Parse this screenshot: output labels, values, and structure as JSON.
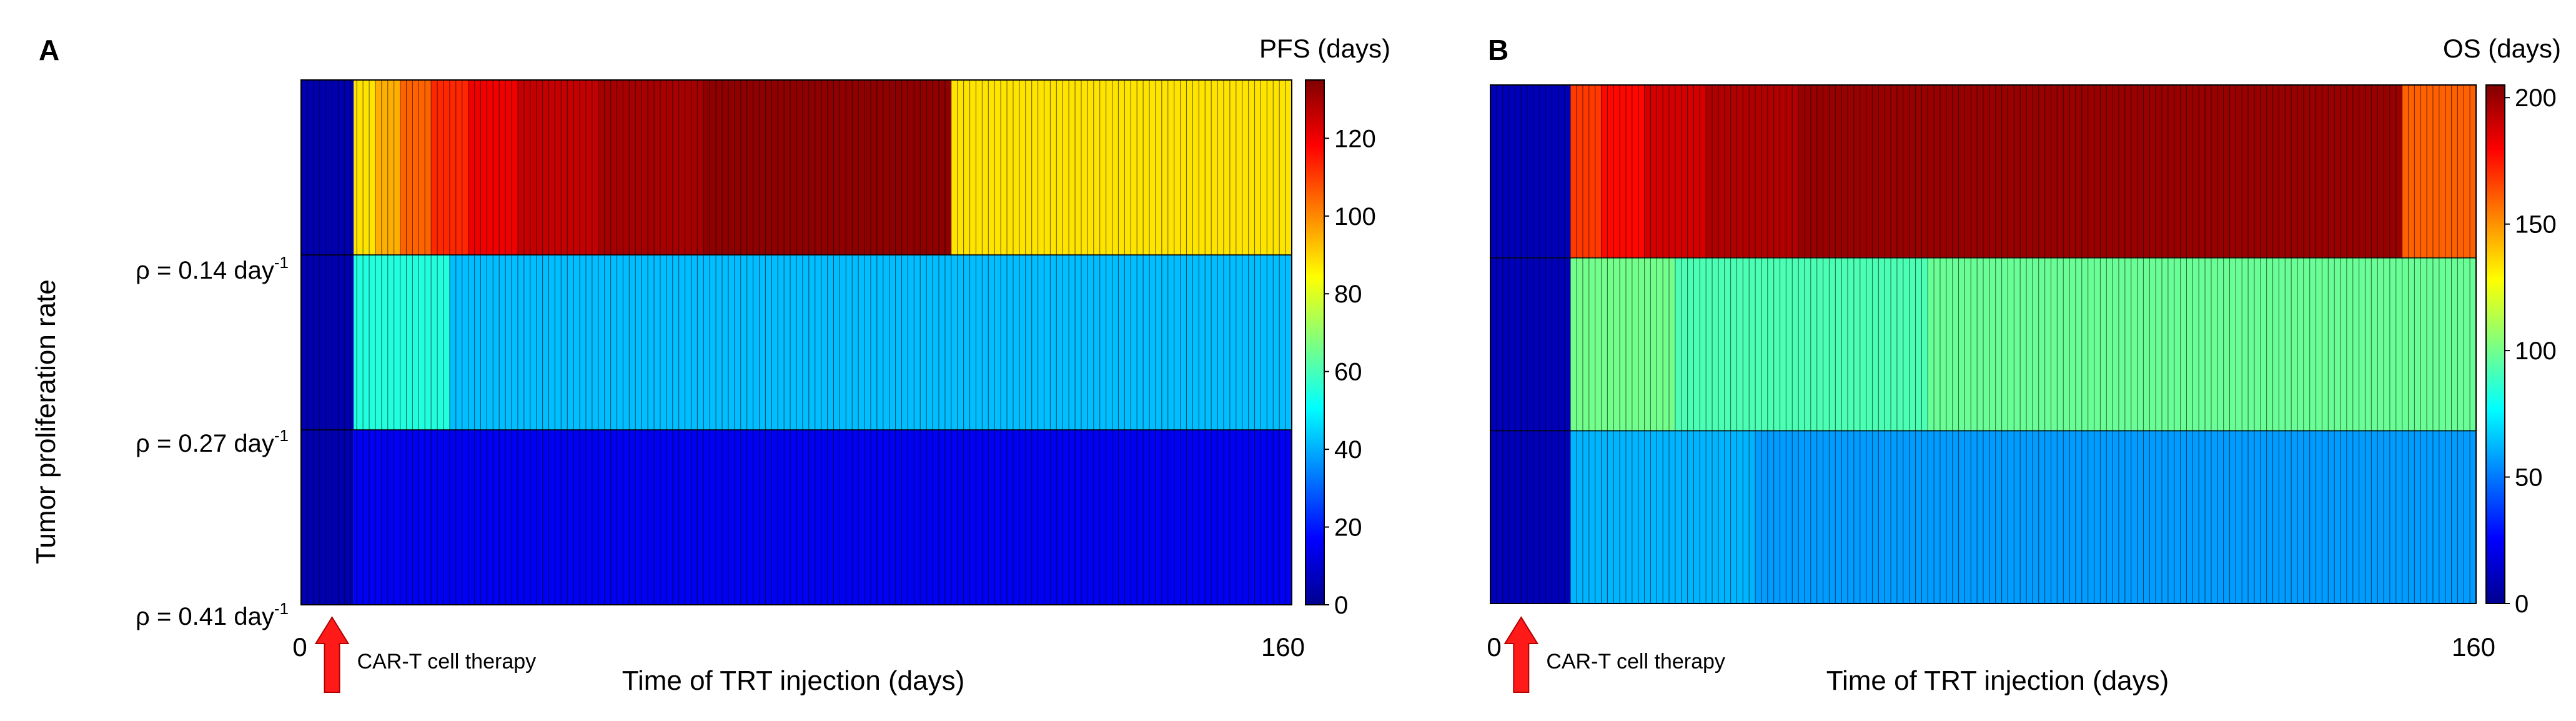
{
  "chart_data": [
    {
      "panel": "A",
      "type": "heatmap",
      "colorbar_title": "PFS (days)",
      "ylabel": "Tumor proliferation rate",
      "xlabel": "Time of TRT injection (days)",
      "x_ticks": [
        "0",
        "160"
      ],
      "xlim": [
        0,
        160
      ],
      "rows": [
        {
          "rho": "ρ = 0.14 day",
          "sup": "-1"
        },
        {
          "rho": "ρ = 0.27 day",
          "sup": "-1"
        },
        {
          "rho": "ρ = 0.41 day",
          "sup": "-1"
        }
      ],
      "colorbar_range": [
        0,
        135
      ],
      "colorbar_ticks": [
        "0",
        "20",
        "40",
        "60",
        "80",
        "100",
        "120"
      ],
      "colorbar_tick_values": [
        0,
        20,
        40,
        60,
        80,
        100,
        120
      ],
      "annotation": "CAR-T cell therapy",
      "annotation_x": 5,
      "segments": [
        [
          {
            "x0": 0,
            "x1": 8.5,
            "value": 5
          },
          {
            "x0": 8.5,
            "x1": 12,
            "value": 88
          },
          {
            "x0": 12,
            "x1": 16,
            "value": 95
          },
          {
            "x0": 16,
            "x1": 21,
            "value": 105
          },
          {
            "x0": 21,
            "x1": 27,
            "value": 113
          },
          {
            "x0": 27,
            "x1": 35,
            "value": 120
          },
          {
            "x0": 35,
            "x1": 48,
            "value": 126
          },
          {
            "x0": 48,
            "x1": 65,
            "value": 130
          },
          {
            "x0": 65,
            "x1": 105,
            "value": 133
          },
          {
            "x0": 105,
            "x1": 160,
            "value": 88
          }
        ],
        [
          {
            "x0": 0,
            "x1": 8.5,
            "value": 5
          },
          {
            "x0": 8.5,
            "x1": 24,
            "value": 55
          },
          {
            "x0": 24,
            "x1": 160,
            "value": 42
          }
        ],
        [
          {
            "x0": 0,
            "x1": 8.5,
            "value": 5
          },
          {
            "x0": 8.5,
            "x1": 160,
            "value": 15
          }
        ]
      ]
    },
    {
      "panel": "B",
      "type": "heatmap",
      "colorbar_title": "OS (days)",
      "ylabel": "",
      "xlabel": "Time of TRT injection (days)",
      "x_ticks": [
        "0",
        "160"
      ],
      "xlim": [
        0,
        160
      ],
      "colorbar_range": [
        0,
        205
      ],
      "colorbar_ticks": [
        "0",
        "50",
        "100",
        "150",
        "200"
      ],
      "colorbar_tick_values": [
        0,
        50,
        100,
        150,
        200
      ],
      "annotation": "CAR-T cell therapy",
      "annotation_x": 5,
      "segments": [
        [
          {
            "x0": 0,
            "x1": 13,
            "value": 10
          },
          {
            "x0": 13,
            "x1": 18,
            "value": 168
          },
          {
            "x0": 18,
            "x1": 25,
            "value": 178
          },
          {
            "x0": 25,
            "x1": 35,
            "value": 188
          },
          {
            "x0": 35,
            "x1": 50,
            "value": 195
          },
          {
            "x0": 50,
            "x1": 148,
            "value": 200
          },
          {
            "x0": 148,
            "x1": 160,
            "value": 160
          }
        ],
        [
          {
            "x0": 0,
            "x1": 13,
            "value": 10
          },
          {
            "x0": 13,
            "x1": 30,
            "value": 100
          },
          {
            "x0": 30,
            "x1": 71,
            "value": 92
          },
          {
            "x0": 71,
            "x1": 160,
            "value": 98
          }
        ],
        [
          {
            "x0": 0,
            "x1": 13,
            "value": 10
          },
          {
            "x0": 13,
            "x1": 43,
            "value": 62
          },
          {
            "x0": 43,
            "x1": 160,
            "value": 57
          }
        ]
      ]
    }
  ]
}
